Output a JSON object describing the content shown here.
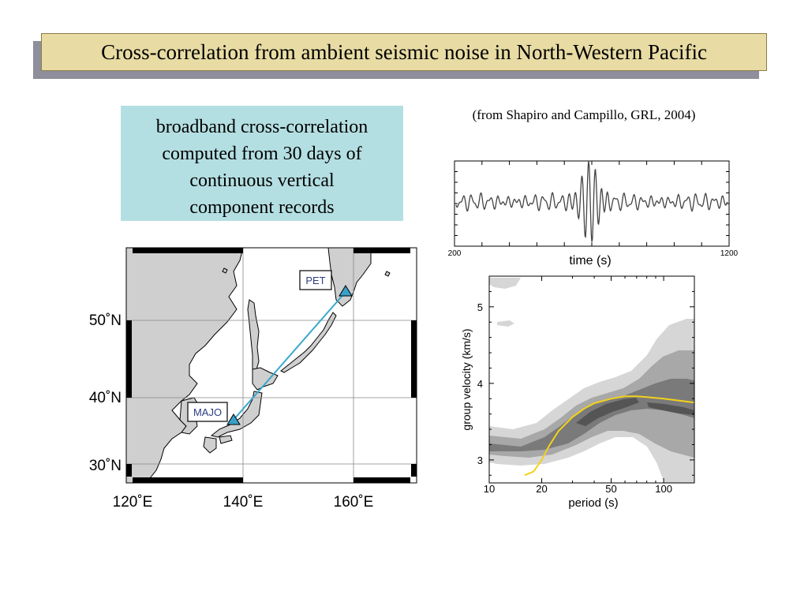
{
  "slide": {
    "title": "Cross-correlation from ambient seismic noise in North-Western Pacific",
    "caption_lines": [
      "broadband cross-correlation",
      "computed from 30 days of",
      "continuous vertical",
      "component records"
    ],
    "citation": "(from Shapiro and Campillo, GRL, 2004)"
  },
  "map": {
    "stations": [
      {
        "name": "PET",
        "lon": 158.6,
        "lat": 53.0
      },
      {
        "name": "MAJO",
        "lon": 138.2,
        "lat": 36.5
      }
    ],
    "path_color": "#3aa8cc",
    "station_color": "#38a0c8",
    "land_color": "#cfcfcf",
    "lon_ticks": [
      "120˚E",
      "140˚E",
      "160˚E"
    ],
    "lat_ticks": [
      "50˚N",
      "40˚N",
      "30˚N"
    ]
  },
  "chart_data": [
    {
      "type": "line",
      "xlabel": "time (s)",
      "x_tick_labels": [
        "200",
        "1200"
      ],
      "xlim": [
        200,
        1200
      ]
    },
    {
      "type": "heatmap",
      "xlabel": "period (s)",
      "ylabel": "group velocity (km/s)",
      "x_scale": "log",
      "x_tick_labels": [
        "10",
        "20",
        "50",
        "100"
      ],
      "y_tick_labels": [
        "3",
        "4",
        "5"
      ],
      "xlim": [
        10,
        150
      ],
      "ylim": [
        2.7,
        5.4
      ],
      "dispersion_curve": {
        "color": "#f2d21a",
        "period": [
          16,
          18,
          20,
          22,
          25,
          30,
          35,
          40,
          50,
          60,
          70,
          80,
          100,
          150
        ],
        "velocity": [
          2.8,
          2.85,
          3.0,
          3.18,
          3.38,
          3.56,
          3.67,
          3.74,
          3.8,
          3.83,
          3.83,
          3.82,
          3.8,
          3.75
        ]
      }
    }
  ]
}
